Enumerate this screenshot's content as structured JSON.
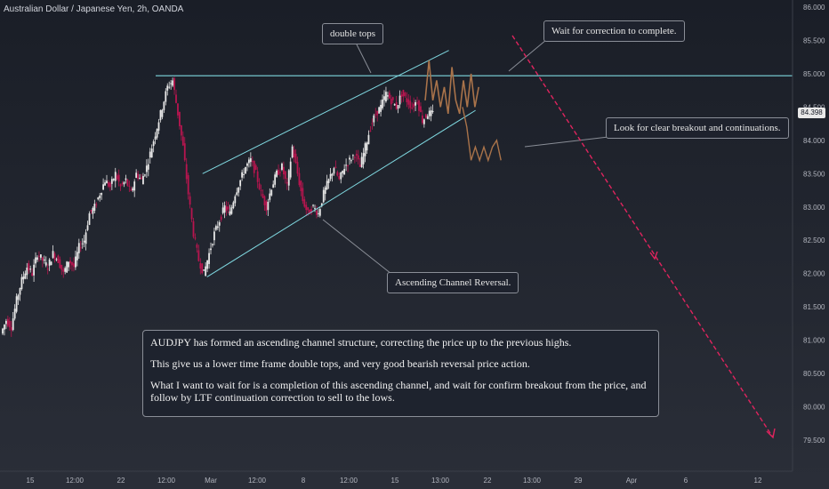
{
  "symbol_title": "Australian Dollar / Japanese Yen, 2h, OANDA",
  "chart_data": {
    "type": "candlestick",
    "title": "Australian Dollar / Japanese Yen, 2h, OANDA",
    "symbol": "AUDJPY",
    "interval": "2h",
    "source": "OANDA",
    "ylim": [
      79.25,
      86.0
    ],
    "y_ticks": [
      "86.000",
      "85.500",
      "85.000",
      "84.500",
      "84.000",
      "83.500",
      "83.000",
      "82.500",
      "82.000",
      "81.500",
      "81.000",
      "80.500",
      "80.000",
      "79.500"
    ],
    "x_ticks": [
      "15",
      "12:00",
      "22",
      "12:00",
      "Mar",
      "12:00",
      "8",
      "12:00",
      "15",
      "13:00",
      "22",
      "13:00",
      "29",
      "Apr",
      "6",
      "12"
    ],
    "current_price": "84.398",
    "price_path": [
      [
        0,
        81.1
      ],
      [
        1,
        81.3
      ],
      [
        2,
        81.2
      ],
      [
        3,
        81.6
      ],
      [
        4,
        81.9
      ],
      [
        5,
        82.1
      ],
      [
        6,
        82.0
      ],
      [
        7,
        82.3
      ],
      [
        8,
        82.2
      ],
      [
        9,
        82.1
      ],
      [
        10,
        82.3
      ],
      [
        11,
        82.2
      ],
      [
        12,
        82.0
      ],
      [
        13,
        82.2
      ],
      [
        14,
        82.1
      ],
      [
        15,
        82.4
      ],
      [
        16,
        82.5
      ],
      [
        17,
        82.9
      ],
      [
        18,
        83.0
      ],
      [
        19,
        83.2
      ],
      [
        20,
        83.4
      ],
      [
        21,
        83.3
      ],
      [
        22,
        83.5
      ],
      [
        23,
        83.3
      ],
      [
        24,
        83.4
      ],
      [
        25,
        83.2
      ],
      [
        26,
        83.5
      ],
      [
        27,
        83.4
      ],
      [
        28,
        83.6
      ],
      [
        29,
        83.9
      ],
      [
        30,
        84.2
      ],
      [
        31,
        84.5
      ],
      [
        32,
        84.8
      ],
      [
        33,
        84.9
      ],
      [
        34,
        84.4
      ],
      [
        35,
        83.9
      ],
      [
        36,
        83.2
      ],
      [
        37,
        82.6
      ],
      [
        38,
        82.2
      ],
      [
        39,
        82.0
      ],
      [
        40,
        82.3
      ],
      [
        41,
        82.6
      ],
      [
        42,
        82.8
      ],
      [
        43,
        83.0
      ],
      [
        44,
        82.9
      ],
      [
        45,
        83.2
      ],
      [
        46,
        83.4
      ],
      [
        47,
        83.6
      ],
      [
        48,
        83.7
      ],
      [
        49,
        83.5
      ],
      [
        50,
        83.2
      ],
      [
        51,
        83.0
      ],
      [
        52,
        83.3
      ],
      [
        53,
        83.5
      ],
      [
        54,
        83.6
      ],
      [
        55,
        83.3
      ],
      [
        56,
        83.9
      ],
      [
        57,
        83.5
      ],
      [
        58,
        83.1
      ],
      [
        59,
        82.9
      ],
      [
        60,
        83.0
      ],
      [
        61,
        82.9
      ],
      [
        62,
        83.2
      ],
      [
        63,
        83.4
      ],
      [
        64,
        83.6
      ],
      [
        65,
        83.4
      ],
      [
        66,
        83.6
      ],
      [
        67,
        83.7
      ],
      [
        68,
        83.8
      ],
      [
        69,
        83.6
      ],
      [
        70,
        83.9
      ],
      [
        71,
        84.2
      ],
      [
        72,
        84.4
      ],
      [
        73,
        84.5
      ],
      [
        74,
        84.7
      ],
      [
        75,
        84.6
      ],
      [
        76,
        84.5
      ],
      [
        77,
        84.7
      ],
      [
        78,
        84.6
      ],
      [
        79,
        84.5
      ],
      [
        80,
        84.6
      ],
      [
        81,
        84.3
      ],
      [
        82,
        84.4
      ],
      [
        83,
        84.4
      ]
    ],
    "projected_path": [
      [
        83,
        84.6
      ],
      [
        84,
        85.2
      ],
      [
        85,
        84.6
      ],
      [
        86,
        84.9
      ],
      [
        87,
        84.5
      ],
      [
        88,
        84.8
      ],
      [
        89,
        84.4
      ],
      [
        90,
        85.1
      ],
      [
        91,
        84.6
      ],
      [
        92,
        84.4
      ],
      [
        93,
        84.9
      ],
      [
        94,
        84.5
      ],
      [
        95,
        85.0
      ],
      [
        96,
        84.5
      ],
      [
        97,
        84.8
      ]
    ],
    "projected_drop": [
      [
        95,
        84.5
      ],
      [
        96,
        84.2
      ],
      [
        97,
        83.7
      ],
      [
        98,
        83.9
      ],
      [
        99,
        83.7
      ],
      [
        100,
        83.9
      ],
      [
        101,
        83.7
      ],
      [
        102,
        83.9
      ],
      [
        103,
        84.0
      ],
      [
        104,
        83.7
      ]
    ],
    "channel": {
      "upper": [
        [
          35,
          83.5
        ],
        [
          96,
          85.35
        ]
      ],
      "lower": [
        [
          35,
          81.95
        ],
        [
          96,
          84.45
        ]
      ]
    },
    "resistance": 84.97,
    "arrow_target": [
      [
        100,
        85.75
      ],
      [
        150,
        79.5
      ]
    ]
  },
  "annotations": {
    "double_tops": "double tops",
    "wait_correction": "Wait for correction to complete.",
    "look_breakout": "Look for clear breakout and continuations.",
    "channel_reversal": "Ascending Channel Reversal.",
    "note_p1": "AUDJPY has formed an ascending channel structure, correcting the price up to the previous highs.",
    "note_p2": "This give us a lower time frame double tops, and very good bearish reversal price action.",
    "note_p3": "What I want to wait for is a completion of this ascending channel, and wait for confirm breakout from the price, and follow by LTF continuation correction to sell to the lows."
  },
  "colors": {
    "background": "#1e222d",
    "bull": "#e8e8e8",
    "bear": "#b8154f",
    "resistance": "#7fd8e0",
    "channel": "#7fd8e0",
    "projection": "#a9734a",
    "arrow": "#e0245e",
    "axis_text": "#b2b5be"
  }
}
